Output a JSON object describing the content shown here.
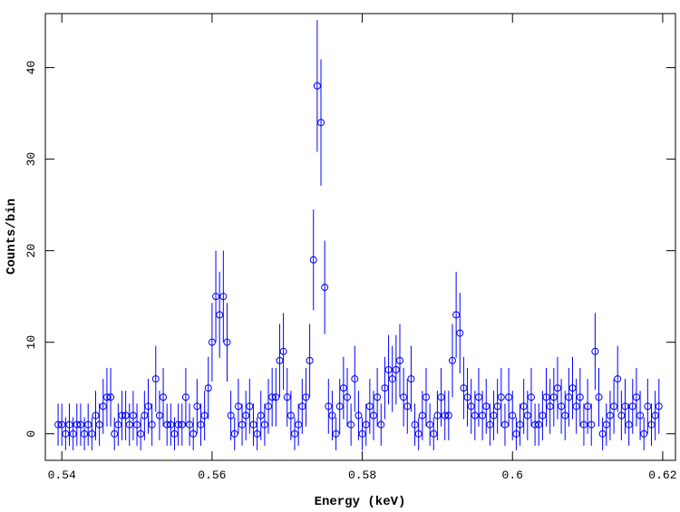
{
  "chart_data": {
    "type": "scatter",
    "x_label": "Energy (keV)",
    "y_label": "Counts/bin",
    "color": "#0000ff",
    "xlim": [
      0.5378,
      0.6217
    ],
    "ylim": [
      -2.9,
      45.9
    ],
    "xticks": [
      0.54,
      0.56,
      0.58,
      0.6,
      0.62
    ],
    "yticks": [
      0,
      10,
      20,
      30,
      40
    ],
    "x": [
      0.5395,
      0.54,
      0.5405,
      0.541,
      0.5415,
      0.542,
      0.5425,
      0.543,
      0.5435,
      0.544,
      0.5445,
      0.545,
      0.5455,
      0.546,
      0.5465,
      0.547,
      0.5475,
      0.548,
      0.5485,
      0.549,
      0.5495,
      0.55,
      0.5505,
      0.551,
      0.5515,
      0.552,
      0.5525,
      0.553,
      0.5535,
      0.554,
      0.5545,
      0.555,
      0.5555,
      0.556,
      0.5565,
      0.557,
      0.5575,
      0.558,
      0.5585,
      0.559,
      0.5595,
      0.56,
      0.5605,
      0.561,
      0.5615,
      0.562,
      0.5625,
      0.563,
      0.5635,
      0.564,
      0.5645,
      0.565,
      0.5655,
      0.566,
      0.5665,
      0.567,
      0.5675,
      0.568,
      0.5685,
      0.569,
      0.5695,
      0.57,
      0.5705,
      0.571,
      0.5715,
      0.572,
      0.5725,
      0.573,
      0.5735,
      0.574,
      0.5745,
      0.575,
      0.5755,
      0.576,
      0.5765,
      0.577,
      0.5775,
      0.578,
      0.5785,
      0.579,
      0.5795,
      0.58,
      0.5805,
      0.581,
      0.5815,
      0.582,
      0.5825,
      0.583,
      0.5835,
      0.584,
      0.5845,
      0.585,
      0.5855,
      0.586,
      0.5865,
      0.587,
      0.5875,
      0.588,
      0.5885,
      0.589,
      0.5895,
      0.59,
      0.5905,
      0.591,
      0.5915,
      0.592,
      0.5925,
      0.593,
      0.5935,
      0.594,
      0.5945,
      0.595,
      0.5955,
      0.596,
      0.5965,
      0.597,
      0.5975,
      0.598,
      0.5985,
      0.599,
      0.5995,
      0.6,
      0.6005,
      0.601,
      0.6015,
      0.602,
      0.6025,
      0.603,
      0.6035,
      0.604,
      0.6045,
      0.605,
      0.6055,
      0.606,
      0.6065,
      0.607,
      0.6075,
      0.608,
      0.6085,
      0.609,
      0.6095,
      0.61,
      0.6105,
      0.611,
      0.6115,
      0.612,
      0.6125,
      0.613,
      0.6135,
      0.614,
      0.6145,
      0.615,
      0.6155,
      0.616,
      0.6165,
      0.617,
      0.6175,
      0.618,
      0.6185,
      0.619,
      0.6195
    ],
    "values": [
      1,
      1,
      0,
      1,
      0,
      1,
      1,
      0,
      1,
      0,
      2,
      1,
      3,
      4,
      4,
      0,
      1,
      2,
      2,
      1,
      2,
      1,
      0,
      2,
      3,
      1,
      6,
      2,
      4,
      1,
      1,
      0,
      1,
      1,
      4,
      1,
      0,
      3,
      1,
      2,
      5,
      10,
      15,
      13,
      15,
      10,
      2,
      0,
      3,
      1,
      2,
      3,
      1,
      0,
      2,
      1,
      3,
      4,
      4,
      8,
      9,
      4,
      2,
      0,
      1,
      3,
      4,
      8,
      19,
      38,
      34,
      16,
      3,
      2,
      0,
      3,
      5,
      4,
      1,
      6,
      2,
      0,
      1,
      3,
      2,
      4,
      1,
      5,
      7,
      6,
      7,
      8,
      4,
      3,
      6,
      1,
      0,
      2,
      4,
      1,
      0,
      2,
      4,
      2,
      2,
      8,
      13,
      11,
      5,
      4,
      3,
      2,
      4,
      2,
      3,
      1,
      2,
      3,
      4,
      1,
      4,
      2,
      0,
      1,
      3,
      2,
      4,
      1,
      1,
      2,
      4,
      3,
      4,
      5,
      3,
      2,
      4,
      5,
      3,
      4,
      1,
      3,
      1,
      9,
      4,
      0,
      1,
      2,
      3,
      6,
      2,
      3,
      1,
      3,
      4,
      2,
      0,
      3,
      1,
      2,
      3
    ],
    "errors": [
      2.3,
      2.3,
      1.8,
      2.3,
      1.8,
      2.3,
      2.3,
      1.8,
      2.3,
      1.8,
      2.7,
      2.3,
      3.0,
      3.2,
      3.2,
      1.8,
      2.3,
      2.7,
      2.7,
      2.3,
      2.7,
      2.3,
      1.8,
      2.7,
      3.0,
      2.3,
      3.6,
      2.7,
      3.2,
      2.3,
      2.3,
      1.8,
      2.3,
      2.3,
      3.2,
      2.3,
      1.8,
      3.0,
      2.3,
      2.7,
      3.4,
      4.3,
      5.0,
      4.7,
      5.0,
      4.3,
      2.7,
      1.8,
      3.0,
      2.3,
      2.7,
      3.0,
      2.3,
      1.8,
      2.7,
      2.3,
      3.0,
      3.2,
      3.2,
      4.0,
      4.2,
      3.2,
      2.7,
      1.8,
      2.3,
      3.0,
      3.2,
      4.0,
      5.5,
      7.2,
      6.9,
      5.1,
      3.0,
      2.7,
      1.8,
      3.0,
      3.4,
      3.2,
      2.3,
      3.6,
      2.7,
      1.8,
      2.3,
      3.0,
      2.7,
      3.2,
      2.3,
      3.4,
      3.8,
      3.6,
      3.8,
      4.0,
      3.2,
      3.0,
      3.6,
      2.3,
      1.8,
      2.7,
      3.2,
      2.3,
      1.8,
      2.7,
      3.2,
      2.7,
      2.7,
      4.0,
      4.7,
      4.4,
      3.4,
      3.2,
      3.0,
      2.7,
      3.2,
      2.7,
      3.0,
      2.3,
      2.7,
      3.0,
      3.2,
      2.3,
      3.2,
      2.7,
      1.8,
      2.3,
      3.0,
      2.7,
      3.2,
      2.3,
      2.3,
      2.7,
      3.2,
      3.0,
      3.2,
      3.4,
      3.0,
      2.7,
      3.2,
      3.4,
      3.0,
      3.2,
      2.3,
      3.0,
      2.3,
      4.2,
      3.2,
      1.8,
      2.3,
      2.7,
      3.0,
      3.6,
      2.7,
      3.0,
      2.3,
      3.0,
      3.2,
      2.7,
      1.8,
      3.0,
      2.3,
      2.7,
      3.0
    ]
  }
}
